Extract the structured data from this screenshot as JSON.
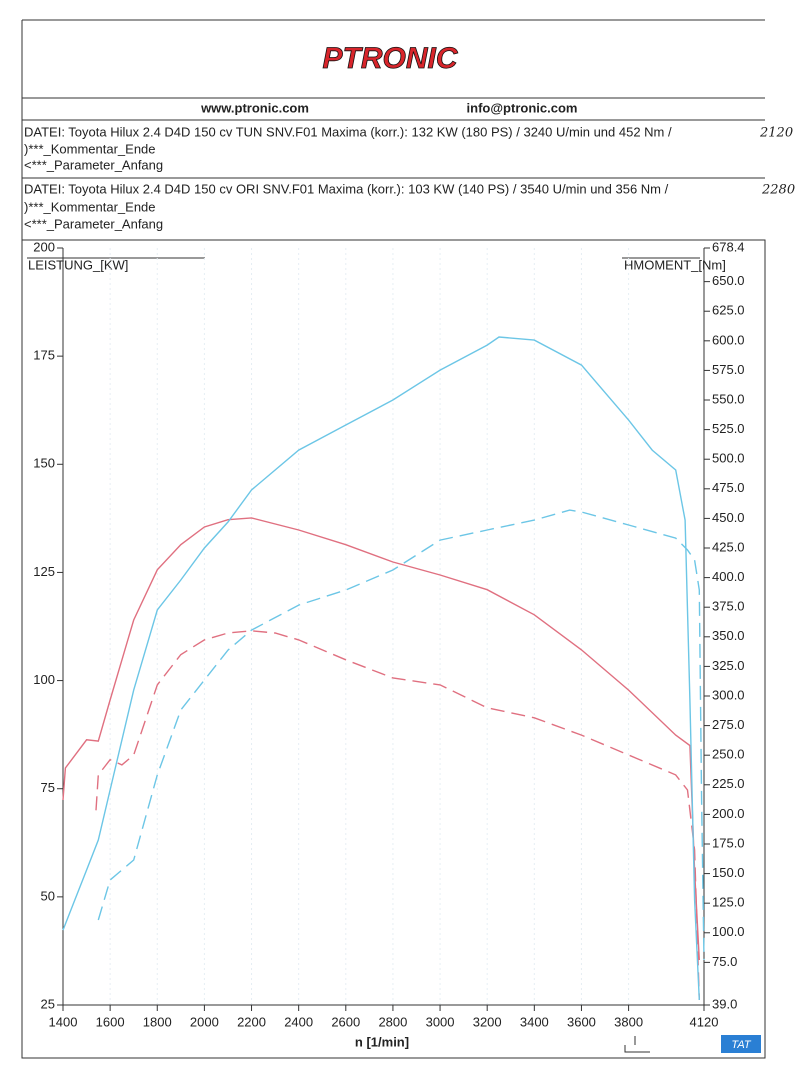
{
  "header": {
    "logo": "PTRONIC",
    "website": "www.ptronic.com",
    "email": "info@ptronic.com",
    "files": [
      {
        "line": "DATEI: Toyota Hilux 2.4 D4D 150 cv TUN SNV.F01  Maxima (korr.):  132 KW (180 PS) /  3240 U/min  und   452 Nm /",
        "note": "2120",
        "comment": ")***_Kommentar_Ende",
        "param": "<***_Parameter_Anfang"
      },
      {
        "line": "DATEI: Toyota Hilux 2.4 D4D 150 cv ORI SNV.F01  Maxima (korr.):  103 KW (140 PS) /  3540 U/min  und   356 Nm /",
        "note": "2280",
        "comment": ")***_Kommentar_Ende",
        "param": "<***_Parameter_Anfang"
      }
    ]
  },
  "chart_data": {
    "type": "line",
    "x_label": "n  [1/min]",
    "y_label": "LEISTUNG_[KW]",
    "y2_label": "HMOMENT_[Nm]",
    "badge": "TAT",
    "xlim": [
      1400,
      4120
    ],
    "xticks": [
      1400,
      1600,
      1800,
      2000,
      2200,
      2400,
      2600,
      2800,
      3000,
      3200,
      3400,
      3600,
      3800,
      4120
    ],
    "ylim": [
      25,
      200
    ],
    "yticks": [
      25,
      50,
      75,
      100,
      125,
      150,
      175,
      200
    ],
    "y2lim": [
      39,
      678.4
    ],
    "y2ticks": [
      {
        "value": 39,
        "label": "39.0"
      },
      {
        "value": 75,
        "label": "75.0"
      },
      {
        "value": 100,
        "label": "100.0"
      },
      {
        "value": 125,
        "label": "125.0"
      },
      {
        "value": 150,
        "label": "150.0"
      },
      {
        "value": 175,
        "label": "175.0"
      },
      {
        "value": 200,
        "label": "200.0"
      },
      {
        "value": 225,
        "label": "225.0"
      },
      {
        "value": 250,
        "label": "250.0"
      },
      {
        "value": 275,
        "label": "275.0"
      },
      {
        "value": 300,
        "label": "300.0"
      },
      {
        "value": 325,
        "label": "325.0"
      },
      {
        "value": 350,
        "label": "350.0"
      },
      {
        "value": 375,
        "label": "375.0"
      },
      {
        "value": 400,
        "label": "400.0"
      },
      {
        "value": 425,
        "label": "425.0"
      },
      {
        "value": 450,
        "label": "450.0"
      },
      {
        "value": 475,
        "label": "475.0"
      },
      {
        "value": 500,
        "label": "500.0"
      },
      {
        "value": 525,
        "label": "525.0"
      },
      {
        "value": 550,
        "label": "550.0"
      },
      {
        "value": 575,
        "label": "575.0"
      },
      {
        "value": 600,
        "label": "600.0"
      },
      {
        "value": 625,
        "label": "625.0"
      },
      {
        "value": 650,
        "label": "650.0"
      },
      678.4
    ],
    "series": [
      {
        "color": "#e07080",
        "dashed": false,
        "x": [
          1400,
          1410,
          1500,
          1550,
          1600,
          1700,
          1800,
          1900,
          2000,
          2100,
          2200,
          2400,
          2600,
          2800,
          3000,
          3200,
          3400,
          3600,
          3800,
          4000,
          4060,
          4080,
          4100
        ],
        "values": [
          72.4,
          79.8,
          86.3,
          86,
          95.5,
          114,
          125.6,
          131.4,
          135.5,
          137.2,
          137.6,
          134.8,
          131.4,
          127.4,
          124.4,
          121,
          115.2,
          107.1,
          97.8,
          87.4,
          85,
          56,
          35.4
        ]
      },
      {
        "color": "#e07080",
        "dashed": true,
        "x": [
          1540,
          1550,
          1600,
          1650,
          1700,
          1800,
          1900,
          2000,
          2100,
          2200,
          2300,
          2400,
          2600,
          2800,
          3000,
          3200,
          3400,
          3600,
          3800,
          4000,
          4050,
          4080,
          4100
        ],
        "values": [
          70,
          78.2,
          81.7,
          80.5,
          82.8,
          99,
          106,
          109.4,
          111,
          111.5,
          111,
          109.4,
          104.8,
          100.6,
          99,
          93.7,
          91.4,
          87.4,
          82.8,
          78.2,
          74.7,
          60.8,
          26.2
        ]
      },
      {
        "color": "#6cc6e6",
        "dashed": false,
        "axis": "y2",
        "x": [
          1400,
          1450,
          1500,
          1550,
          1600,
          1700,
          1800,
          1900,
          2000,
          2100,
          2200,
          2400,
          2600,
          2800,
          3000,
          3200,
          3250,
          3400,
          3600,
          3800,
          3900,
          4000,
          4040,
          4060,
          4080,
          4100
        ],
        "values": [
          102.3,
          127.7,
          153,
          178.4,
          220.6,
          305,
          372.6,
          398,
          425,
          447,
          474,
          507.7,
          528.9,
          550,
          575.3,
          596.4,
          603.2,
          600.6,
          579.5,
          533,
          507.7,
          490.9,
          448.6,
          296.6,
          127.7,
          43.2
        ]
      },
      {
        "color": "#6cc6e6",
        "dashed": true,
        "axis": "y2",
        "x": [
          1550,
          1600,
          1700,
          1800,
          1900,
          2000,
          2100,
          2200,
          2400,
          2600,
          2800,
          3000,
          3200,
          3400,
          3550,
          3600,
          3800,
          4000,
          4050,
          4080,
          4100,
          4110,
          4120
        ],
        "values": [
          110.8,
          144.6,
          161.5,
          233.3,
          288.2,
          313.5,
          338.8,
          355.7,
          376.8,
          389.5,
          406.4,
          431.7,
          440.2,
          448.6,
          457,
          455.4,
          444.4,
          433.4,
          423.3,
          414.8,
          389.5,
          212,
          77
        ]
      }
    ]
  }
}
